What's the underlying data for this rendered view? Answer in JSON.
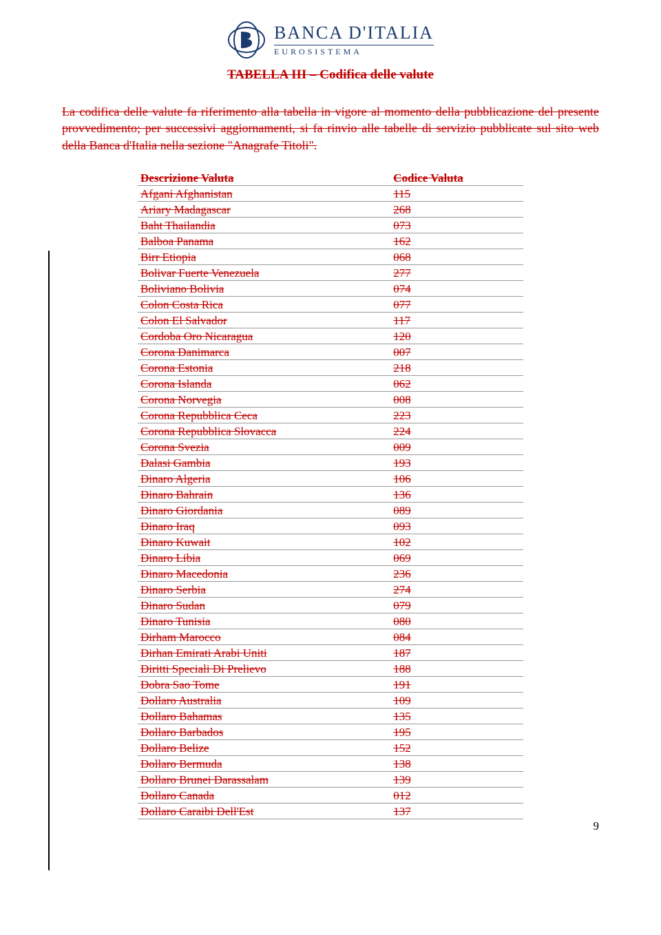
{
  "text_color": "#c00000",
  "border_color": "#999999",
  "logo_color": "#1a3a6e",
  "bank_name": "BANCA D'ITALIA",
  "bank_sub": "EUROSISTEMA",
  "doc_title": "TABELLA III – Codifica delle valute",
  "intro": "La codifica delle valute fa riferimento alla tabella in vigore al momento della pubblicazione del presente provvedimento; per successivi aggiornamenti, si fa rinvio alle tabelle di servizio pubblicate sul sito web della Banca d'Italia nella sezione \"Anagrafe Titoli\".",
  "columns": [
    "Descrizione Valuta",
    "Codice Valuta"
  ],
  "rows": [
    [
      "Afgani Afghanistan",
      "115"
    ],
    [
      "Ariary Madagascar",
      "268"
    ],
    [
      "Baht Thailandia",
      "073"
    ],
    [
      "Balboa Panama",
      "162"
    ],
    [
      "Birr Etiopia",
      "068"
    ],
    [
      "Bolivar Fuerte Venezuela",
      "277"
    ],
    [
      "Boliviano Bolivia",
      "074"
    ],
    [
      "Colon Costa Rica",
      "077"
    ],
    [
      "Colon El Salvador",
      "117"
    ],
    [
      "Cordoba Oro Nicaragua",
      "120"
    ],
    [
      "Corona Danimarca",
      "007"
    ],
    [
      "Corona Estonia",
      "218"
    ],
    [
      "Corona Islanda",
      "062"
    ],
    [
      "Corona Norvegia",
      "008"
    ],
    [
      "Corona Repubblica Ceca",
      "223"
    ],
    [
      "Corona Repubblica Slovacca",
      "224"
    ],
    [
      "Corona Svezia",
      "009"
    ],
    [
      "Dalasi Gambia",
      "193"
    ],
    [
      "Dinaro Algeria",
      "106"
    ],
    [
      "Dinaro Bahrain",
      "136"
    ],
    [
      "Dinaro Giordania",
      "089"
    ],
    [
      "Dinaro Iraq",
      "093"
    ],
    [
      "Dinaro Kuwait",
      "102"
    ],
    [
      "Dinaro Libia",
      "069"
    ],
    [
      "Dinaro Macedonia",
      "236"
    ],
    [
      "Dinaro Serbia",
      "274"
    ],
    [
      "Dinaro Sudan",
      "079"
    ],
    [
      "Dinaro Tunisia",
      "080"
    ],
    [
      "Dirham Marocco",
      "084"
    ],
    [
      "Dirhan Emirati Arabi Uniti",
      "187"
    ],
    [
      "Diritti Speciali Di Prelievo",
      "188"
    ],
    [
      "Dobra Sao Tome",
      "191"
    ],
    [
      "Dollaro Australia",
      "109"
    ],
    [
      "Dollaro Bahamas",
      "135"
    ],
    [
      "Dollaro Barbados",
      "195"
    ],
    [
      "Dollaro Belize",
      "152"
    ],
    [
      "Dollaro Bermuda",
      "138"
    ],
    [
      "Dollaro Brunei Darassalam",
      "139"
    ],
    [
      "Dollaro Canada",
      "012"
    ],
    [
      "Dollaro Caraibi Dell'Est",
      "137"
    ]
  ],
  "page_num": "9"
}
